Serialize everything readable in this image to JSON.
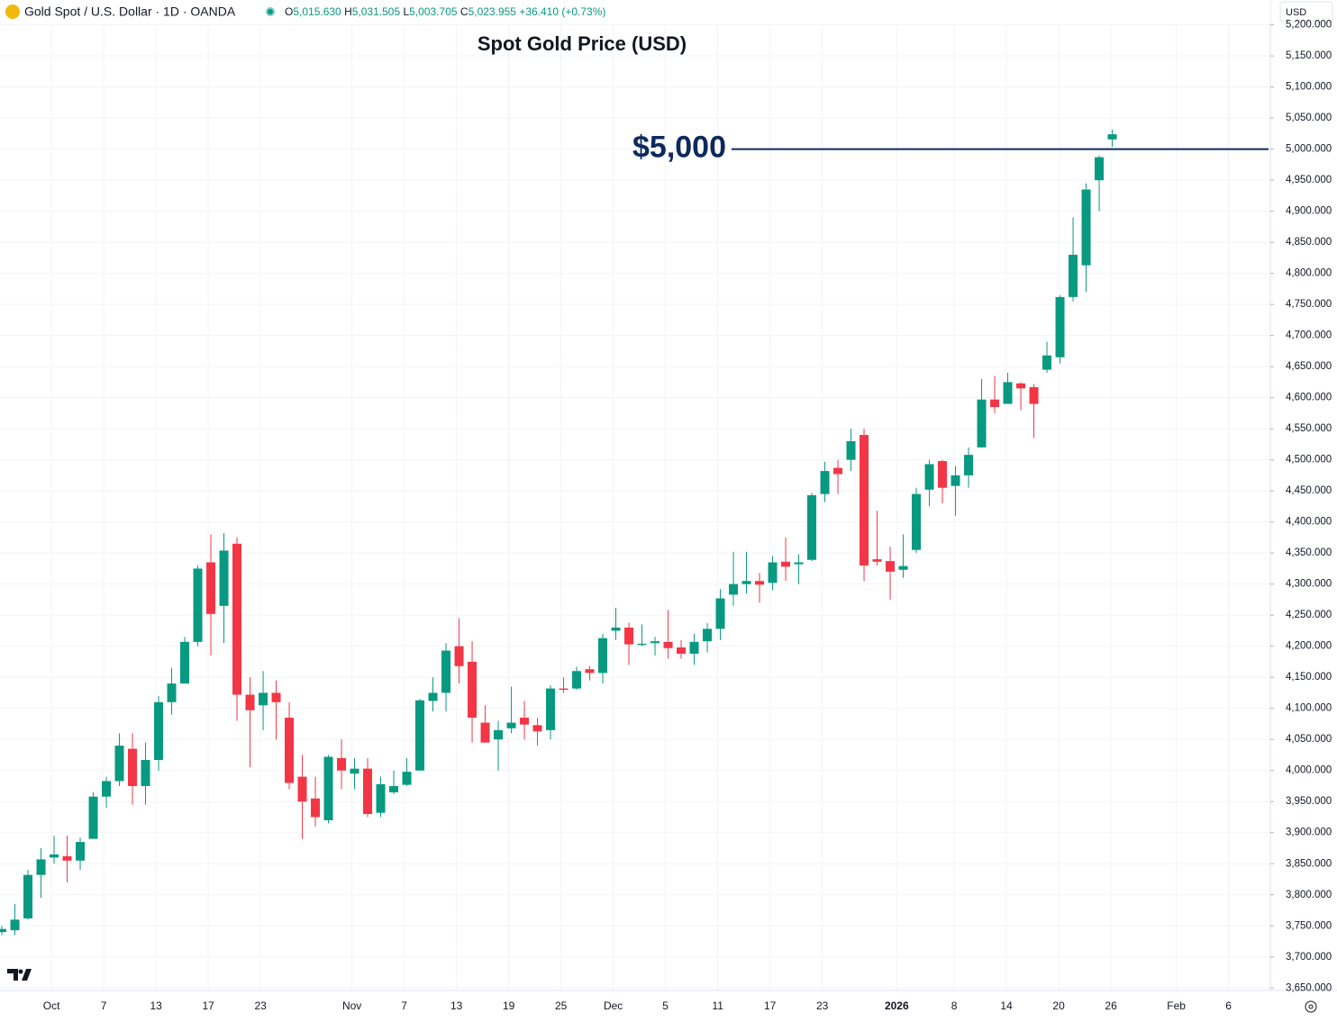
{
  "header": {
    "symbol": "Gold Spot / U.S. Dollar · 1D · OANDA",
    "open_key": "O",
    "open": "5,015.630",
    "high_key": "H",
    "high": "5,031.505",
    "low_key": "L",
    "low": "5,003.705",
    "close_key": "C",
    "close": "5,023.955",
    "change": "+36.410 (+0.73%)",
    "currency": "USD"
  },
  "chart_data": {
    "type": "candlestick",
    "title": "Spot Gold Price (USD)",
    "up_color": "#089981",
    "down_color": "#f23645",
    "grid": true,
    "open": [
      3740,
      3743,
      3762,
      3832,
      3860,
      3862,
      3855,
      3890,
      3958,
      3983,
      4035,
      3975,
      4017,
      4110,
      4140,
      4207,
      4335,
      4265,
      4365,
      4122,
      4105,
      4125,
      4085,
      3990,
      3955,
      3920,
      4020,
      3995,
      4003,
      3932,
      3965,
      3977,
      4000,
      4112,
      4125,
      4200,
      4175,
      4077,
      4050,
      4068,
      4085,
      4073,
      4065,
      4132,
      4132,
      4163,
      4157,
      4225,
      4230,
      4202,
      4205,
      4207,
      4198,
      4188,
      4208,
      4228,
      4283,
      4300,
      4305,
      4302,
      4336,
      4332,
      4339,
      4445,
      4487,
      4500,
      4540,
      4340,
      4337,
      4323,
      4355,
      4452,
      4498,
      4458,
      4475,
      4520,
      4597,
      4590,
      4623,
      4617,
      4645,
      4665,
      4762,
      4813,
      4950,
      5015.63
    ],
    "high": [
      3750,
      3785,
      3840,
      3875,
      3895,
      3895,
      3892,
      3965,
      3990,
      4060,
      4060,
      4045,
      4120,
      4165,
      4215,
      4330,
      4380,
      4382,
      4375,
      4150,
      4160,
      4145,
      4110,
      4025,
      3990,
      4025,
      4050,
      4020,
      4020,
      3990,
      4000,
      4020,
      4115,
      4150,
      4205,
      4245,
      4208,
      4105,
      4080,
      4135,
      4112,
      4085,
      4137,
      4150,
      4167,
      4168,
      4220,
      4262,
      4238,
      4235,
      4215,
      4258,
      4210,
      4220,
      4237,
      4292,
      4352,
      4352,
      4318,
      4345,
      4375,
      4348,
      4447,
      4497,
      4500,
      4550,
      4550,
      4418,
      4360,
      4380,
      4455,
      4500,
      4500,
      4490,
      4520,
      4630,
      4635,
      4640,
      4625,
      4622,
      4690,
      4765,
      4890,
      4945,
      4990,
      5031.505
    ],
    "low": [
      3735,
      3735,
      3760,
      3795,
      3850,
      3820,
      3840,
      3890,
      3940,
      3975,
      3945,
      3945,
      4000,
      4090,
      4140,
      4200,
      4185,
      4205,
      4080,
      4005,
      4065,
      4050,
      3970,
      3890,
      3910,
      3915,
      3970,
      3970,
      3925,
      3925,
      3962,
      3975,
      4000,
      4095,
      4095,
      4140,
      4045,
      4045,
      4000,
      4060,
      4050,
      4040,
      4050,
      4125,
      4130,
      4145,
      4140,
      4210,
      4170,
      4200,
      4185,
      4180,
      4180,
      4170,
      4190,
      4210,
      4265,
      4285,
      4270,
      4290,
      4305,
      4300,
      4337,
      4432,
      4445,
      4482,
      4305,
      4330,
      4275,
      4310,
      4350,
      4425,
      4430,
      4410,
      4455,
      4520,
      4575,
      4590,
      4580,
      4535,
      4640,
      4655,
      4755,
      4770,
      4900,
      5003.705
    ],
    "close": [
      3745,
      3760,
      3832,
      3857,
      3865,
      3855,
      3885,
      3958,
      3983,
      4040,
      3975,
      4017,
      4110,
      4140,
      4207,
      4325,
      4252,
      4354,
      4122,
      4097,
      4125,
      4110,
      3980,
      3950,
      3925,
      4022,
      4000,
      4003,
      3930,
      3978,
      3975,
      3998,
      4113,
      4125,
      4193,
      4168,
      4085,
      4045,
      4065,
      4077,
      4074,
      4063,
      4132,
      4130,
      4160,
      4157,
      4213,
      4230,
      4203,
      4204,
      4208,
      4197,
      4188,
      4207,
      4228,
      4277,
      4300,
      4305,
      4299,
      4335,
      4328,
      4335,
      4443,
      4482,
      4477,
      4530,
      4330,
      4336,
      4320,
      4329,
      4445,
      4493,
      4455,
      4475,
      4508,
      4597,
      4585,
      4625,
      4615,
      4590,
      4668,
      4762,
      4830,
      4935,
      4987,
      5023.955
    ],
    "xlim": [
      -0.14,
      97.1
    ],
    "xticks": [
      {
        "value": 3.8,
        "label": "Oct"
      },
      {
        "value": 7.8,
        "label": "7"
      },
      {
        "value": 11.8,
        "label": "13"
      },
      {
        "value": 15.8,
        "label": "17"
      },
      {
        "value": 19.8,
        "label": "23"
      },
      {
        "value": 26.8,
        "label": "Nov"
      },
      {
        "value": 30.8,
        "label": "7"
      },
      {
        "value": 34.8,
        "label": "13"
      },
      {
        "value": 38.8,
        "label": "19"
      },
      {
        "value": 42.8,
        "label": "25"
      },
      {
        "value": 46.8,
        "label": "Dec"
      },
      {
        "value": 50.8,
        "label": "5"
      },
      {
        "value": 54.8,
        "label": "11"
      },
      {
        "value": 58.8,
        "label": "17"
      },
      {
        "value": 62.8,
        "label": "23"
      },
      {
        "value": 68.5,
        "label": "2026"
      },
      {
        "value": 72.9,
        "label": "8"
      },
      {
        "value": 76.9,
        "label": "14"
      },
      {
        "value": 80.9,
        "label": "20"
      },
      {
        "value": 84.9,
        "label": "26"
      },
      {
        "value": 89.9,
        "label": "Feb"
      },
      {
        "value": 93.9,
        "label": "6"
      }
    ],
    "ylim": [
      3646,
      5240
    ],
    "yticks": [
      {
        "value": 3650,
        "label": "3,650.000"
      },
      {
        "value": 3700,
        "label": "3,700.000"
      },
      {
        "value": 3750,
        "label": "3,750.000"
      },
      {
        "value": 3800,
        "label": "3,800.000"
      },
      {
        "value": 3850,
        "label": "3,850.000"
      },
      {
        "value": 3900,
        "label": "3,900.000"
      },
      {
        "value": 3950,
        "label": "3,950.000"
      },
      {
        "value": 4000,
        "label": "4,000.000"
      },
      {
        "value": 4050,
        "label": "4,050.000"
      },
      {
        "value": 4100,
        "label": "4,100.000"
      },
      {
        "value": 4150,
        "label": "4,150.000"
      },
      {
        "value": 4200,
        "label": "4,200.000"
      },
      {
        "value": 4250,
        "label": "4,250.000"
      },
      {
        "value": 4300,
        "label": "4,300.000"
      },
      {
        "value": 4350,
        "label": "4,350.000"
      },
      {
        "value": 4400,
        "label": "4,400.000"
      },
      {
        "value": 4450,
        "label": "4,450.000"
      },
      {
        "value": 4500,
        "label": "4,500.000"
      },
      {
        "value": 4550,
        "label": "4,550.000"
      },
      {
        "value": 4600,
        "label": "4,600.000"
      },
      {
        "value": 4650,
        "label": "4,650.000"
      },
      {
        "value": 4700,
        "label": "4,700.000"
      },
      {
        "value": 4750,
        "label": "4,750.000"
      },
      {
        "value": 4800,
        "label": "4,800.000"
      },
      {
        "value": 4850,
        "label": "4,850.000"
      },
      {
        "value": 4900,
        "label": "4,900.000"
      },
      {
        "value": 4950,
        "label": "4,950.000"
      },
      {
        "value": 5000,
        "label": "5,000.000"
      },
      {
        "value": 5050,
        "label": "5,050.000"
      },
      {
        "value": 5100,
        "label": "5,100.000"
      },
      {
        "value": 5150,
        "label": "5,150.000"
      },
      {
        "value": 5200,
        "label": "5,200.000"
      }
    ],
    "hline": {
      "value": 5000,
      "label": "$5,000",
      "color": "#0d2a5c"
    }
  }
}
